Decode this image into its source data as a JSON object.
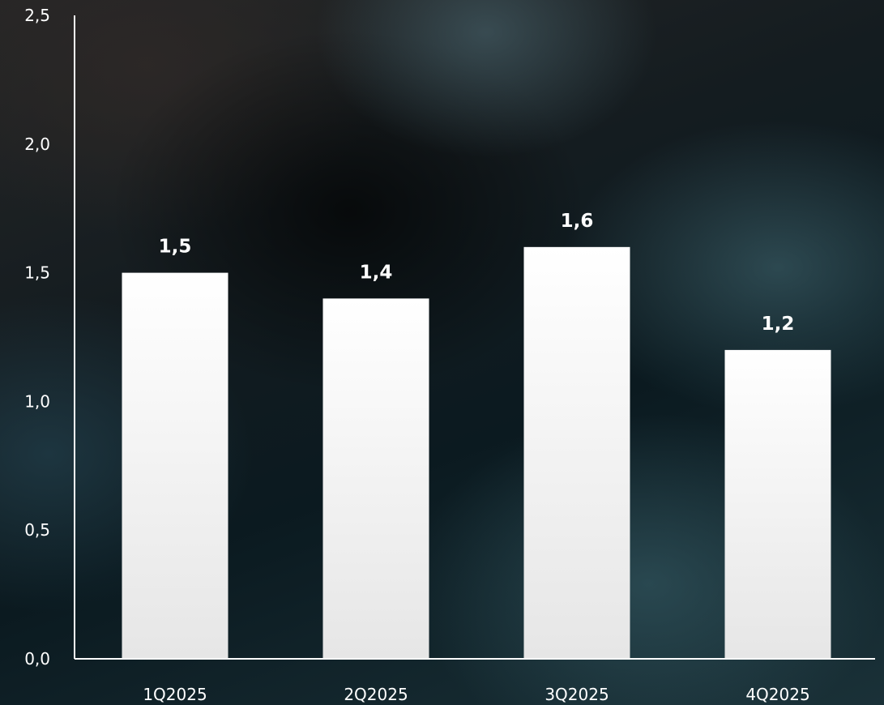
{
  "chart_data": {
    "type": "bar",
    "categories": [
      "1Q2025",
      "2Q2025",
      "3Q2025",
      "4Q2025"
    ],
    "values": [
      1.5,
      1.4,
      1.6,
      1.2
    ],
    "value_labels": [
      "1,5",
      "1,4",
      "1,6",
      "1,2"
    ],
    "y_ticks": [
      0,
      0.5,
      1.0,
      1.5,
      2.0,
      2.5
    ],
    "y_tick_labels": [
      "0,0",
      "0,5",
      "1,0",
      "1,5",
      "2,0",
      "2,5"
    ],
    "ylim": [
      0,
      2.5
    ],
    "title": "",
    "xlabel": "",
    "ylabel": "",
    "grid": false,
    "bar_color": "#ffffff",
    "axis_color": "#ffffff",
    "text_color": "#ffffff"
  }
}
